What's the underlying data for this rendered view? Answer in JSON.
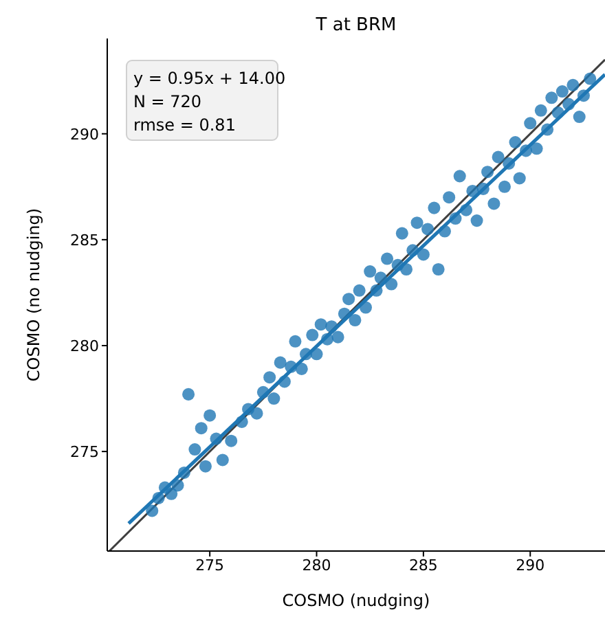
{
  "chart_data": {
    "type": "scatter",
    "title": "T at BRM",
    "xlabel": "COSMO (nudging)",
    "ylabel": "COSMO (no nudging)",
    "annotations": [
      "y = 0.95x + 14.00",
      "N = 720",
      "rmse = 0.81"
    ],
    "xlim": [
      270.2,
      293.5
    ],
    "ylim": [
      270.3,
      294.5
    ],
    "xticks": [
      275,
      280,
      285,
      290
    ],
    "yticks": [
      275,
      280,
      285,
      290
    ],
    "grid": false,
    "marker": "circle",
    "series": [
      {
        "color": "#1f77b4",
        "x": [
          272.3,
          272.6,
          272.9,
          273.2,
          273.5,
          273.8,
          274.0,
          274.3,
          274.6,
          275.0,
          274.8,
          275.3,
          275.6,
          276.0,
          276.5,
          276.8,
          277.2,
          277.5,
          277.8,
          278.0,
          278.3,
          278.5,
          278.8,
          279.0,
          279.3,
          279.5,
          279.8,
          280.0,
          280.2,
          280.5,
          280.7,
          281.0,
          281.3,
          281.5,
          281.8,
          282.0,
          282.3,
          282.5,
          282.8,
          283.0,
          283.3,
          283.5,
          283.8,
          284.0,
          284.2,
          284.5,
          284.7,
          285.0,
          285.2,
          285.5,
          285.7,
          286.0,
          286.2,
          286.5,
          286.7,
          287.0,
          287.3,
          287.5,
          287.8,
          288.0,
          288.3,
          288.5,
          288.8,
          289.0,
          289.3,
          289.5,
          289.8,
          290.0,
          290.3,
          290.5,
          290.8,
          291.0,
          291.3,
          291.5,
          291.8,
          292.0,
          292.3,
          292.5,
          292.8
        ],
        "values": [
          272.2,
          272.8,
          273.3,
          273.0,
          273.4,
          274.0,
          277.7,
          275.1,
          276.1,
          276.7,
          274.3,
          275.6,
          274.6,
          275.5,
          276.4,
          277.0,
          276.8,
          277.8,
          278.5,
          277.5,
          279.2,
          278.3,
          279.0,
          280.2,
          278.9,
          279.6,
          280.5,
          279.6,
          281.0,
          280.3,
          280.9,
          280.4,
          281.5,
          282.2,
          281.2,
          282.6,
          281.8,
          283.5,
          282.6,
          283.2,
          284.1,
          282.9,
          283.8,
          285.3,
          283.6,
          284.5,
          285.8,
          284.3,
          285.5,
          286.5,
          283.6,
          285.4,
          287.0,
          286.0,
          288.0,
          286.4,
          287.3,
          285.9,
          287.4,
          288.2,
          286.7,
          288.9,
          287.5,
          288.6,
          289.6,
          287.9,
          289.2,
          290.5,
          289.3,
          291.1,
          290.2,
          291.7,
          291.0,
          292.0,
          291.4,
          292.3,
          290.8,
          291.8,
          292.6
        ]
      },
      {
        "type": "line",
        "marker": "none",
        "color": "#404040",
        "x": [
          270.3,
          293.5
        ],
        "values": [
          270.3,
          293.5
        ]
      },
      {
        "type": "line",
        "marker": "none",
        "color": "#1f77b4",
        "x": [
          271.2,
          293.5
        ],
        "values": [
          271.6,
          292.8
        ]
      }
    ]
  }
}
